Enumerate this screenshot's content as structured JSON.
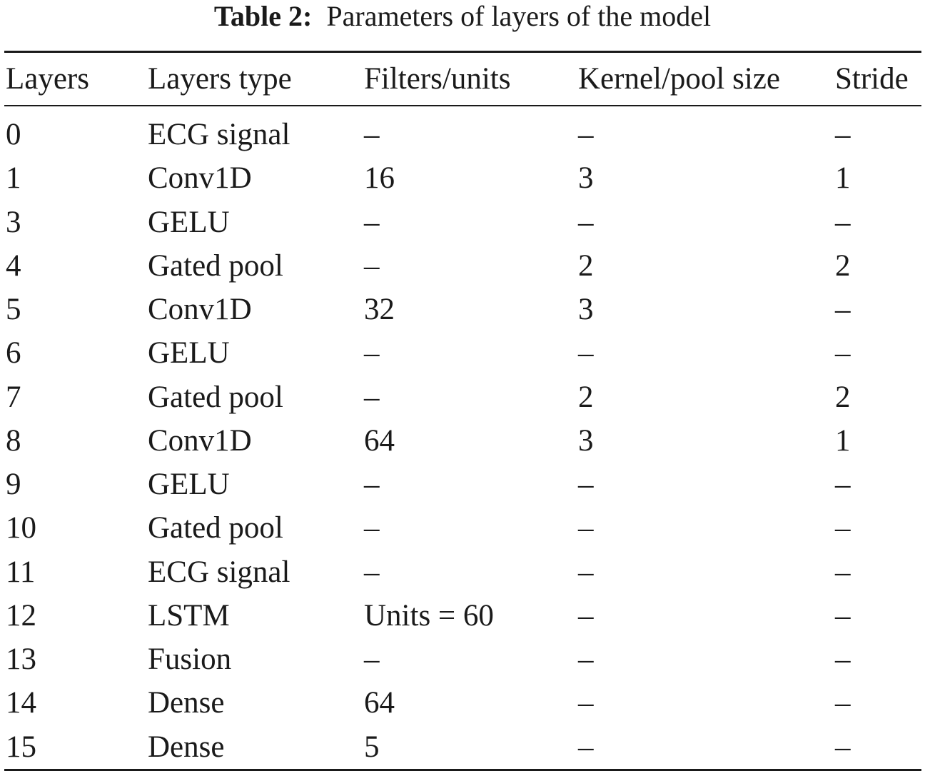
{
  "caption": {
    "label": "Table 2:",
    "text": "Parameters of layers of the model"
  },
  "table": {
    "headers": [
      "Layers",
      "Layers type",
      "Filters/units",
      "Kernel/pool size",
      "Stride"
    ],
    "rows": [
      [
        "0",
        "ECG signal",
        "–",
        "–",
        "–"
      ],
      [
        "1",
        "Conv1D",
        "16",
        "3",
        "1"
      ],
      [
        "3",
        "GELU",
        "–",
        "–",
        "–"
      ],
      [
        "4",
        "Gated pool",
        "–",
        "2",
        "2"
      ],
      [
        "5",
        "Conv1D",
        "32",
        "3",
        "–"
      ],
      [
        "6",
        "GELU",
        "–",
        "–",
        "–"
      ],
      [
        "7",
        "Gated pool",
        "–",
        "2",
        "2"
      ],
      [
        "8",
        "Conv1D",
        "64",
        "3",
        "1"
      ],
      [
        "9",
        "GELU",
        "–",
        "–",
        "–"
      ],
      [
        "10",
        "Gated pool",
        "–",
        "–",
        "–"
      ],
      [
        "11",
        "ECG signal",
        "–",
        "–",
        "–"
      ],
      [
        "12",
        "LSTM",
        "Units = 60",
        "–",
        "–"
      ],
      [
        "13",
        "Fusion",
        "–",
        "–",
        "–"
      ],
      [
        "14",
        "Dense",
        "64",
        "–",
        "–"
      ],
      [
        "15",
        "Dense",
        "5",
        "–",
        "–"
      ]
    ]
  }
}
